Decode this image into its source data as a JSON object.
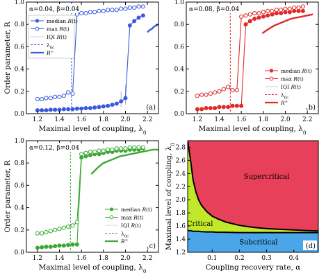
{
  "chart_data": [
    {
      "type": "scatter",
      "panel_label": "(a)",
      "params": "α=0.04, β=0.04",
      "color": "#3a5bdc",
      "xlabel": "Maximal level of coupling, λ0",
      "ylabel": "Order parameter, R",
      "xlim": [
        1.1,
        2.3
      ],
      "ylim": [
        0,
        1
      ],
      "xticks": [
        "1.2",
        "1.4",
        "1.6",
        "1.8",
        "2.0",
        "2.2"
      ],
      "yticks": [
        "0.0",
        "0.2",
        "0.4",
        "0.6",
        "0.8",
        "1.0"
      ],
      "legend_position": "top-left",
      "lambda_c": 1.51,
      "series": [
        {
          "name": "median R(t)",
          "marker": "filled-circle",
          "x": [
            1.2,
            1.24,
            1.28,
            1.32,
            1.36,
            1.4,
            1.44,
            1.48,
            1.52,
            1.56,
            1.6,
            1.64,
            1.68,
            1.72,
            1.76,
            1.8,
            1.84,
            1.88,
            1.92,
            1.96,
            2.0,
            2.04,
            2.08,
            2.12,
            2.16
          ],
          "y": [
            0.03,
            0.03,
            0.03,
            0.035,
            0.035,
            0.035,
            0.04,
            0.04,
            0.04,
            0.045,
            0.045,
            0.05,
            0.05,
            0.055,
            0.06,
            0.065,
            0.07,
            0.08,
            0.09,
            0.11,
            0.14,
            0.79,
            0.83,
            0.86,
            0.88
          ]
        },
        {
          "name": "max R(t)",
          "marker": "open-circle",
          "x": [
            1.2,
            1.24,
            1.28,
            1.32,
            1.36,
            1.4,
            1.44,
            1.48,
            1.52,
            1.56,
            1.6,
            1.64,
            1.68,
            1.72,
            1.76,
            1.8,
            1.84,
            1.88,
            1.92,
            1.96,
            2.0,
            2.04,
            2.08,
            2.12,
            2.16
          ],
          "y": [
            0.13,
            0.13,
            0.14,
            0.14,
            0.15,
            0.15,
            0.16,
            0.19,
            0.18,
            0.89,
            0.9,
            0.9,
            0.91,
            0.91,
            0.92,
            0.92,
            0.93,
            0.93,
            0.93,
            0.94,
            0.94,
            0.95,
            0.95,
            0.96,
            0.96
          ]
        },
        {
          "name": "IQI R(t)",
          "marker": "bar",
          "x": [
            1.96,
            2.0
          ],
          "low": [
            0.06,
            0.08
          ],
          "high": [
            0.2,
            0.26
          ]
        },
        {
          "name": "R^∞",
          "marker": "line",
          "x": [
            2.2,
            2.22,
            2.24,
            2.26,
            2.28,
            2.3
          ],
          "y": [
            0.73,
            0.75,
            0.76,
            0.78,
            0.79,
            0.8
          ]
        }
      ],
      "legend": [
        "median R(t)",
        "max R(t)",
        "IQI R(t)",
        "λ0c",
        "R^∞"
      ]
    },
    {
      "type": "scatter",
      "panel_label": "(b)",
      "params": "α=0.08, β=0.04",
      "color": "#e02a2a",
      "xlabel": "Maximal level of coupling, λ0",
      "ylabel": "",
      "xlim": [
        1.1,
        2.3
      ],
      "ylim": [
        0,
        1
      ],
      "xticks": [
        "1.2",
        "1.4",
        "1.6",
        "1.8",
        "2.0",
        "2.2"
      ],
      "yticks": [
        "0.0",
        "0.2",
        "0.4",
        "0.6",
        "0.8",
        "1.0"
      ],
      "legend_position": "bottom-right",
      "lambda_c": 1.5,
      "series": [
        {
          "name": "median R(t)",
          "marker": "filled-circle",
          "x": [
            1.2,
            1.24,
            1.28,
            1.32,
            1.36,
            1.4,
            1.44,
            1.48,
            1.52,
            1.56,
            1.6,
            1.64,
            1.68,
            1.72,
            1.76,
            1.8,
            1.84,
            1.88,
            1.92,
            1.96,
            2.0,
            2.04,
            2.08,
            2.12,
            2.16
          ],
          "y": [
            0.04,
            0.04,
            0.05,
            0.05,
            0.05,
            0.06,
            0.06,
            0.06,
            0.07,
            0.07,
            0.07,
            0.8,
            0.83,
            0.85,
            0.86,
            0.87,
            0.88,
            0.89,
            0.9,
            0.9,
            0.91,
            0.91,
            0.92,
            0.92,
            0.92
          ]
        },
        {
          "name": "max R(t)",
          "marker": "open-circle",
          "x": [
            1.2,
            1.24,
            1.28,
            1.32,
            1.36,
            1.4,
            1.44,
            1.48,
            1.52,
            1.56,
            1.6,
            1.64,
            1.68,
            1.72,
            1.76,
            1.8,
            1.84,
            1.88,
            1.92,
            1.96,
            2.0,
            2.04,
            2.08,
            2.12,
            2.16
          ],
          "y": [
            0.16,
            0.17,
            0.17,
            0.18,
            0.19,
            0.2,
            0.22,
            0.24,
            0.21,
            0.21,
            0.87,
            0.88,
            0.89,
            0.9,
            0.9,
            0.91,
            0.92,
            0.92,
            0.93,
            0.93,
            0.94,
            0.94,
            0.95,
            0.95,
            0.96
          ]
        },
        {
          "name": "R^∞",
          "marker": "line",
          "x": [
            1.79,
            1.85,
            1.9,
            1.95,
            2.0,
            2.05,
            2.1,
            2.15,
            2.2,
            2.25
          ],
          "y": [
            0.72,
            0.76,
            0.79,
            0.81,
            0.83,
            0.85,
            0.86,
            0.87,
            0.88,
            0.89
          ]
        }
      ],
      "legend": [
        "median R(t)",
        "max R(t)",
        "IQI R(t)",
        "λ0c",
        "R^∞"
      ]
    },
    {
      "type": "scatter",
      "panel_label": "(c)",
      "params": "α=0.12, β=0.04",
      "color": "#3aa834",
      "xlabel": "Maximal level of coupling, λ0",
      "ylabel": "Order parameter, R",
      "xlim": [
        1.1,
        2.3
      ],
      "ylim": [
        0,
        1
      ],
      "xticks": [
        "1.2",
        "1.4",
        "1.6",
        "1.8",
        "2.0",
        "2.2"
      ],
      "yticks": [
        "0.0",
        "0.2",
        "0.4",
        "0.6",
        "0.8",
        "1.0"
      ],
      "legend_position": "bottom-right",
      "lambda_c": 1.5,
      "series": [
        {
          "name": "median R(t)",
          "marker": "filled-circle",
          "x": [
            1.2,
            1.24,
            1.28,
            1.32,
            1.36,
            1.4,
            1.44,
            1.48,
            1.52,
            1.56,
            1.6,
            1.64,
            1.68,
            1.72,
            1.76,
            1.8,
            1.84,
            1.88,
            1.92,
            1.96,
            2.0,
            2.04,
            2.08,
            2.12,
            2.16
          ],
          "y": [
            0.04,
            0.045,
            0.05,
            0.05,
            0.055,
            0.06,
            0.06,
            0.065,
            0.07,
            0.07,
            0.85,
            0.86,
            0.87,
            0.88,
            0.88,
            0.89,
            0.9,
            0.9,
            0.91,
            0.91,
            0.91,
            0.92,
            0.92,
            0.92,
            0.93
          ]
        },
        {
          "name": "max R(t)",
          "marker": "open-circle",
          "x": [
            1.2,
            1.24,
            1.28,
            1.32,
            1.36,
            1.4,
            1.44,
            1.48,
            1.52,
            1.56,
            1.6,
            1.64,
            1.68,
            1.72,
            1.76,
            1.8,
            1.84,
            1.88,
            1.92,
            1.96,
            2.0,
            2.04,
            2.08,
            2.12,
            2.16
          ],
          "y": [
            0.17,
            0.17,
            0.18,
            0.19,
            0.2,
            0.21,
            0.22,
            0.23,
            0.24,
            0.27,
            0.88,
            0.89,
            0.9,
            0.9,
            0.91,
            0.91,
            0.92,
            0.92,
            0.93,
            0.93,
            0.93,
            0.94,
            0.94,
            0.94,
            0.94
          ]
        },
        {
          "name": "R^∞",
          "marker": "line",
          "x": [
            1.69,
            1.75,
            1.8,
            1.85,
            1.9,
            1.95,
            2.0,
            2.05,
            2.1,
            2.15,
            2.2,
            2.25,
            2.3
          ],
          "y": [
            0.7,
            0.76,
            0.8,
            0.82,
            0.84,
            0.86,
            0.87,
            0.88,
            0.89,
            0.9,
            0.91,
            0.92,
            0.92
          ]
        }
      ],
      "legend": [
        "median R(t)",
        "max R(t)",
        "IQI R(t)",
        "λ0c",
        "R^∞"
      ]
    },
    {
      "type": "area",
      "panel_label": "(d)",
      "xlabel": "Coupling recovery rate, α",
      "ylabel": "Maximal level of coupling, λ0",
      "xlim": [
        0.01,
        0.49
      ],
      "ylim": [
        1.2,
        2.9
      ],
      "xticks": [
        "0.1",
        "0.2",
        "0.3",
        "0.4"
      ],
      "yticks": [
        "1.2",
        "1.4",
        "1.6",
        "1.8",
        "2.0",
        "2.2",
        "2.4",
        "2.6",
        "2.8"
      ],
      "regions": [
        {
          "name": "Supercritical",
          "color": "#e8405a"
        },
        {
          "name": "Critical",
          "color": "#c2e82a"
        },
        {
          "name": "Subcritical",
          "color": "#4aa6e8"
        }
      ],
      "boundaries": {
        "alpha": [
          0.01,
          0.02,
          0.03,
          0.04,
          0.05,
          0.06,
          0.08,
          0.1,
          0.12,
          0.15,
          0.2,
          0.25,
          0.3,
          0.35,
          0.4,
          0.45,
          0.49
        ],
        "lambda_upper": [
          2.9,
          2.62,
          2.3,
          2.12,
          2.0,
          1.92,
          1.82,
          1.75,
          1.71,
          1.66,
          1.61,
          1.58,
          1.56,
          1.55,
          1.54,
          1.53,
          1.525
        ],
        "lambda_lower": [
          1.53,
          1.53,
          1.52,
          1.52,
          1.52,
          1.515,
          1.51,
          1.51,
          1.505,
          1.505,
          1.5,
          1.5,
          1.5,
          1.5,
          1.5,
          1.5,
          1.5
        ]
      }
    }
  ]
}
